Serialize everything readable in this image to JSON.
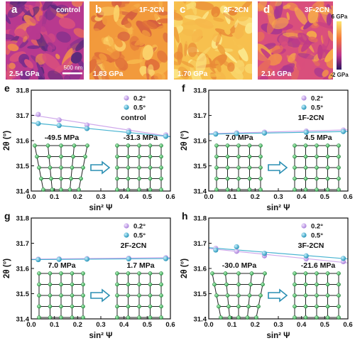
{
  "maps": [
    {
      "letter": "a",
      "name": "control",
      "modulus": "2.54 GPa"
    },
    {
      "letter": "b",
      "name": "1F-2CN",
      "modulus": "1.83 GPa"
    },
    {
      "letter": "c",
      "name": "2F-2CN",
      "modulus": "1.70 GPa"
    },
    {
      "letter": "d",
      "name": "3F-2CN",
      "modulus": "2.14 GPa"
    }
  ],
  "scale_bar": "500 nm",
  "colorbar": {
    "max": "6 GPa",
    "min": "-2 GPa",
    "colors": [
      "#4b1a7f",
      "#c0358d",
      "#f57a3c",
      "#fde66e"
    ]
  },
  "series_colors": {
    "0.2°": "#c79ae8",
    "0.5°": "#2aa7c9"
  },
  "chart_data": [
    {
      "type": "scatter",
      "panel": "e",
      "label": "control",
      "xlabel": "sin² Ψ",
      "ylabel": "2θ (°)",
      "xlim": [
        0,
        0.6
      ],
      "ylim": [
        31.4,
        31.8
      ],
      "xticks": [
        "0.0",
        "0.1",
        "0.2",
        "0.3",
        "0.4",
        "0.5",
        "0.6"
      ],
      "yticks": [
        "31.4",
        "31.5",
        "31.6",
        "31.7",
        "31.8"
      ],
      "legend": [
        "0.2°",
        "0.5°"
      ],
      "series": [
        {
          "name": "0.2°",
          "x": [
            0.03,
            0.12,
            0.24,
            0.42,
            0.58
          ],
          "y": [
            31.704,
            31.682,
            31.662,
            31.64,
            31.623
          ]
        },
        {
          "name": "0.5°",
          "x": [
            0.03,
            0.12,
            0.24,
            0.42,
            0.58
          ],
          "y": [
            31.668,
            31.66,
            31.648,
            31.633,
            31.617
          ]
        }
      ],
      "stress_before": "-49.5 MPa",
      "stress_after": "-31.3 MPa",
      "lattice": "compressive"
    },
    {
      "type": "scatter",
      "panel": "f",
      "label": "1F-2CN",
      "xlabel": "sin² Ψ",
      "ylabel": "2θ (°)",
      "xlim": [
        0,
        0.6
      ],
      "ylim": [
        31.4,
        31.8
      ],
      "xticks": [
        "0.0",
        "0.1",
        "0.2",
        "0.3",
        "0.4",
        "0.5",
        "0.6"
      ],
      "yticks": [
        "31.4",
        "31.5",
        "31.6",
        "31.7",
        "31.8"
      ],
      "legend": [
        "0.2°",
        "0.5°"
      ],
      "series": [
        {
          "name": "0.2°",
          "x": [
            0.03,
            0.12,
            0.24,
            0.42,
            0.58
          ],
          "y": [
            31.628,
            31.631,
            31.634,
            31.638,
            31.642
          ]
        },
        {
          "name": "0.5°",
          "x": [
            0.03,
            0.12,
            0.24,
            0.42,
            0.58
          ],
          "y": [
            31.626,
            31.628,
            31.63,
            31.633,
            31.636
          ]
        }
      ],
      "stress_before": "7.0 MPa",
      "stress_after": "4.5 MPa",
      "lattice": "tensile"
    },
    {
      "type": "scatter",
      "panel": "g",
      "label": "2F-2CN",
      "xlabel": "sin² Ψ",
      "ylabel": "2θ (°)",
      "xlim": [
        0,
        0.6
      ],
      "ylim": [
        31.4,
        31.8
      ],
      "xticks": [
        "0.0",
        "0.1",
        "0.2",
        "0.3",
        "0.4",
        "0.5",
        "0.6"
      ],
      "yticks": [
        "31.4",
        "31.5",
        "31.6",
        "31.7",
        "31.8"
      ],
      "legend": [
        "0.2°",
        "0.5°"
      ],
      "series": [
        {
          "name": "0.2°",
          "x": [
            0.03,
            0.12,
            0.24,
            0.42,
            0.58
          ],
          "y": [
            31.637,
            31.638,
            31.639,
            31.641,
            31.643
          ]
        },
        {
          "name": "0.5°",
          "x": [
            0.03,
            0.12,
            0.24,
            0.42,
            0.58
          ],
          "y": [
            31.635,
            31.636,
            31.637,
            31.638,
            31.639
          ]
        }
      ],
      "stress_before": "7.0 MPa",
      "stress_after": "1.7 MPa",
      "lattice": "tensile"
    },
    {
      "type": "scatter",
      "panel": "h",
      "label": "3F-2CN",
      "xlabel": "sin² Ψ",
      "ylabel": "2θ (°)",
      "xlim": [
        0,
        0.6
      ],
      "ylim": [
        31.4,
        31.8
      ],
      "xticks": [
        "0.0",
        "0.1",
        "0.2",
        "0.3",
        "0.4",
        "0.5",
        "0.6"
      ],
      "yticks": [
        "31.4",
        "31.5",
        "31.6",
        "31.7",
        "31.8"
      ],
      "legend": [
        "0.2°",
        "0.5°"
      ],
      "series": [
        {
          "name": "0.2°",
          "x": [
            0.03,
            0.12,
            0.24,
            0.42,
            0.58
          ],
          "y": [
            31.68,
            31.668,
            31.65,
            31.638,
            31.627
          ]
        },
        {
          "name": "0.5°",
          "x": [
            0.03,
            0.12,
            0.24,
            0.42,
            0.58
          ],
          "y": [
            31.673,
            31.686,
            31.66,
            31.65,
            31.64
          ]
        }
      ],
      "stress_before": "-30.0 MPa",
      "stress_after": "-21.6 MPa",
      "lattice": "compressive"
    }
  ]
}
